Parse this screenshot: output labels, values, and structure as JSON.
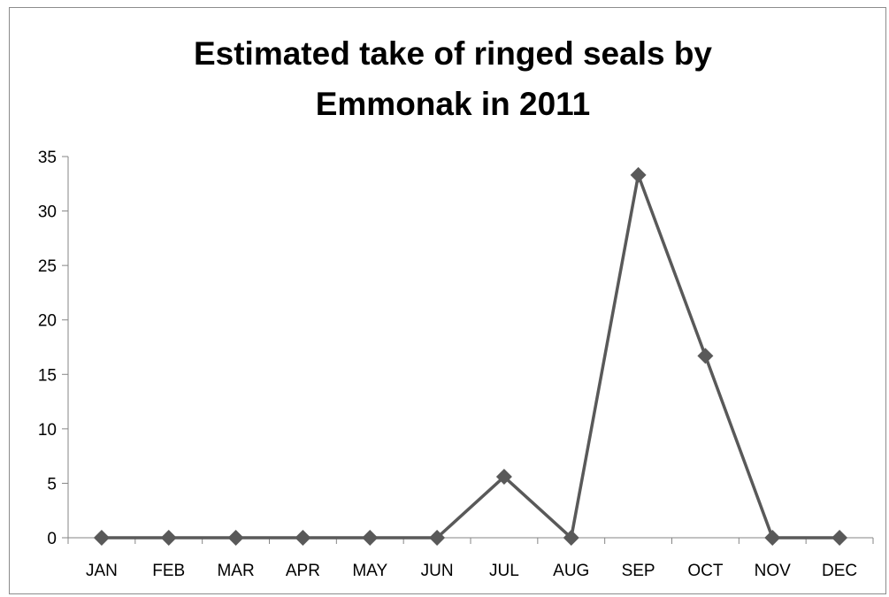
{
  "chart_data": {
    "type": "line",
    "title_lines": [
      "Estimated take of ringed seals by",
      "Emmonak in 2011"
    ],
    "xlabel": "",
    "ylabel": "",
    "categories": [
      "JAN",
      "FEB",
      "MAR",
      "APR",
      "MAY",
      "JUN",
      "JUL",
      "AUG",
      "SEP",
      "OCT",
      "NOV",
      "DEC"
    ],
    "series": [
      {
        "values": [
          0,
          0,
          0,
          0,
          0,
          0,
          5.6,
          0,
          33.3,
          16.7,
          0,
          0
        ]
      }
    ],
    "ylim": [
      0,
      35
    ],
    "yticks": [
      0,
      5,
      10,
      15,
      20,
      25,
      30,
      35
    ],
    "marker": "diamond",
    "line_color": "#595959",
    "grid": false,
    "legend": "none"
  }
}
